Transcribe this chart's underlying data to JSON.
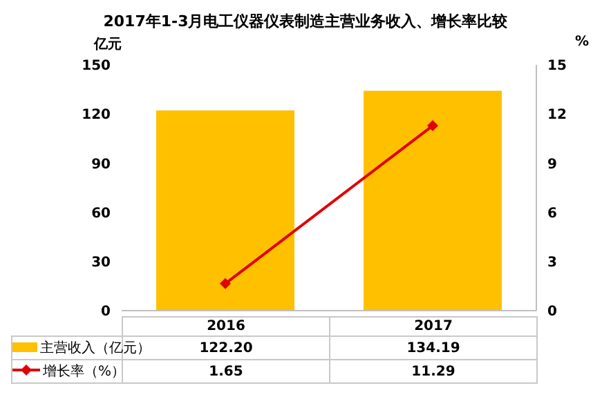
{
  "chart_data": {
    "type": "bar",
    "title": "2017年1-3月电工仪器仪表制造主营业务收入、增长率比较",
    "ylabel": "亿元",
    "y2label": "%",
    "categories": [
      "2016",
      "2017"
    ],
    "series": [
      {
        "name": "主营收入（亿元）",
        "color": "#ffc000",
        "values": [
          122.2,
          134.19
        ],
        "value_labels": [
          "122.20",
          "134.19"
        ]
      },
      {
        "name": "增长率（%）",
        "type": "line",
        "axis": "y2",
        "color": "#e00000",
        "values": [
          1.65,
          11.29
        ],
        "value_labels": [
          "1.65",
          "11.29"
        ]
      }
    ],
    "ylim": [
      0,
      150
    ],
    "yticks": [
      0,
      30,
      60,
      90,
      120,
      150
    ],
    "y2lim": [
      0,
      15
    ],
    "y2ticks": [
      0,
      3,
      6,
      9,
      12,
      15
    ],
    "legend": "bottom",
    "marker": "diamond",
    "grid": false
  }
}
